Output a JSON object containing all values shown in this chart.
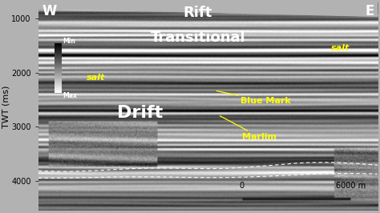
{
  "bg_color": "#b2b2b2",
  "ylabel": "TWT (ms)",
  "ylim": [
    4550,
    700
  ],
  "xlim": [
    0,
    100
  ],
  "yticks": [
    1000,
    2000,
    3000,
    4000
  ],
  "west_label": "W",
  "east_label": "E",
  "drift_label": "Drift",
  "transitional_label": "Transitional",
  "rift_label": "Rift",
  "marlim_label": "Marlim",
  "blue_mark_label": "Blue Mark",
  "salt_left_label": "salt",
  "salt_right_label": "salt",
  "max_label": "Max",
  "min_label": "Min",
  "scale_label": "6000 m",
  "scale_zero": "0",
  "annotation_color_yellow": "#ffff00",
  "drift_fontsize": 16,
  "transitional_fontsize": 13,
  "rift_fontsize": 13,
  "axis_label_fontsize": 8
}
